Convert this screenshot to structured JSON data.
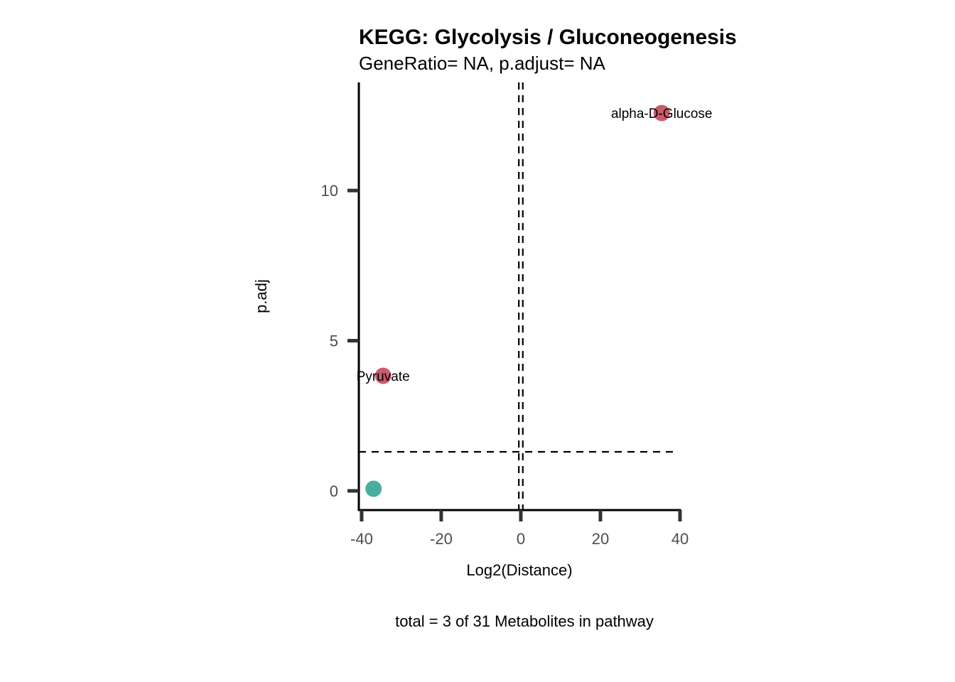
{
  "chart_data": {
    "type": "scatter",
    "title": "KEGG: Glycolysis / Gluconeogenesis",
    "subtitle": "GeneRatio= NA, p.adjust= NA",
    "xlabel": "Log2(Distance)",
    "ylabel": "p.adj",
    "caption": "total = 3 of 31 Metabolites in pathway",
    "xlim": [
      -40.7,
      40
    ],
    "ylim": [
      -0.64,
      13.6
    ],
    "x_ticks": [
      -40,
      -20,
      0,
      20,
      40
    ],
    "x_tick_labels": [
      "-40",
      "-20",
      "0",
      "20",
      "40"
    ],
    "y_ticks": [
      0,
      5,
      10
    ],
    "y_tick_labels": [
      "0",
      "5",
      "10"
    ],
    "grid": false,
    "hlines": [
      1.3
    ],
    "vlines": [
      -0.5,
      0.5
    ],
    "points": [
      {
        "label": "alpha-D-Glucose",
        "x": 35.4,
        "y": 12.58,
        "color": "#C95B6B"
      },
      {
        "label": "Pyruvate",
        "x": -34.6,
        "y": 3.83,
        "color": "#C95B6B"
      },
      {
        "label": "",
        "x": -37.0,
        "y": 0.07,
        "color": "#4AAE9E"
      }
    ]
  }
}
